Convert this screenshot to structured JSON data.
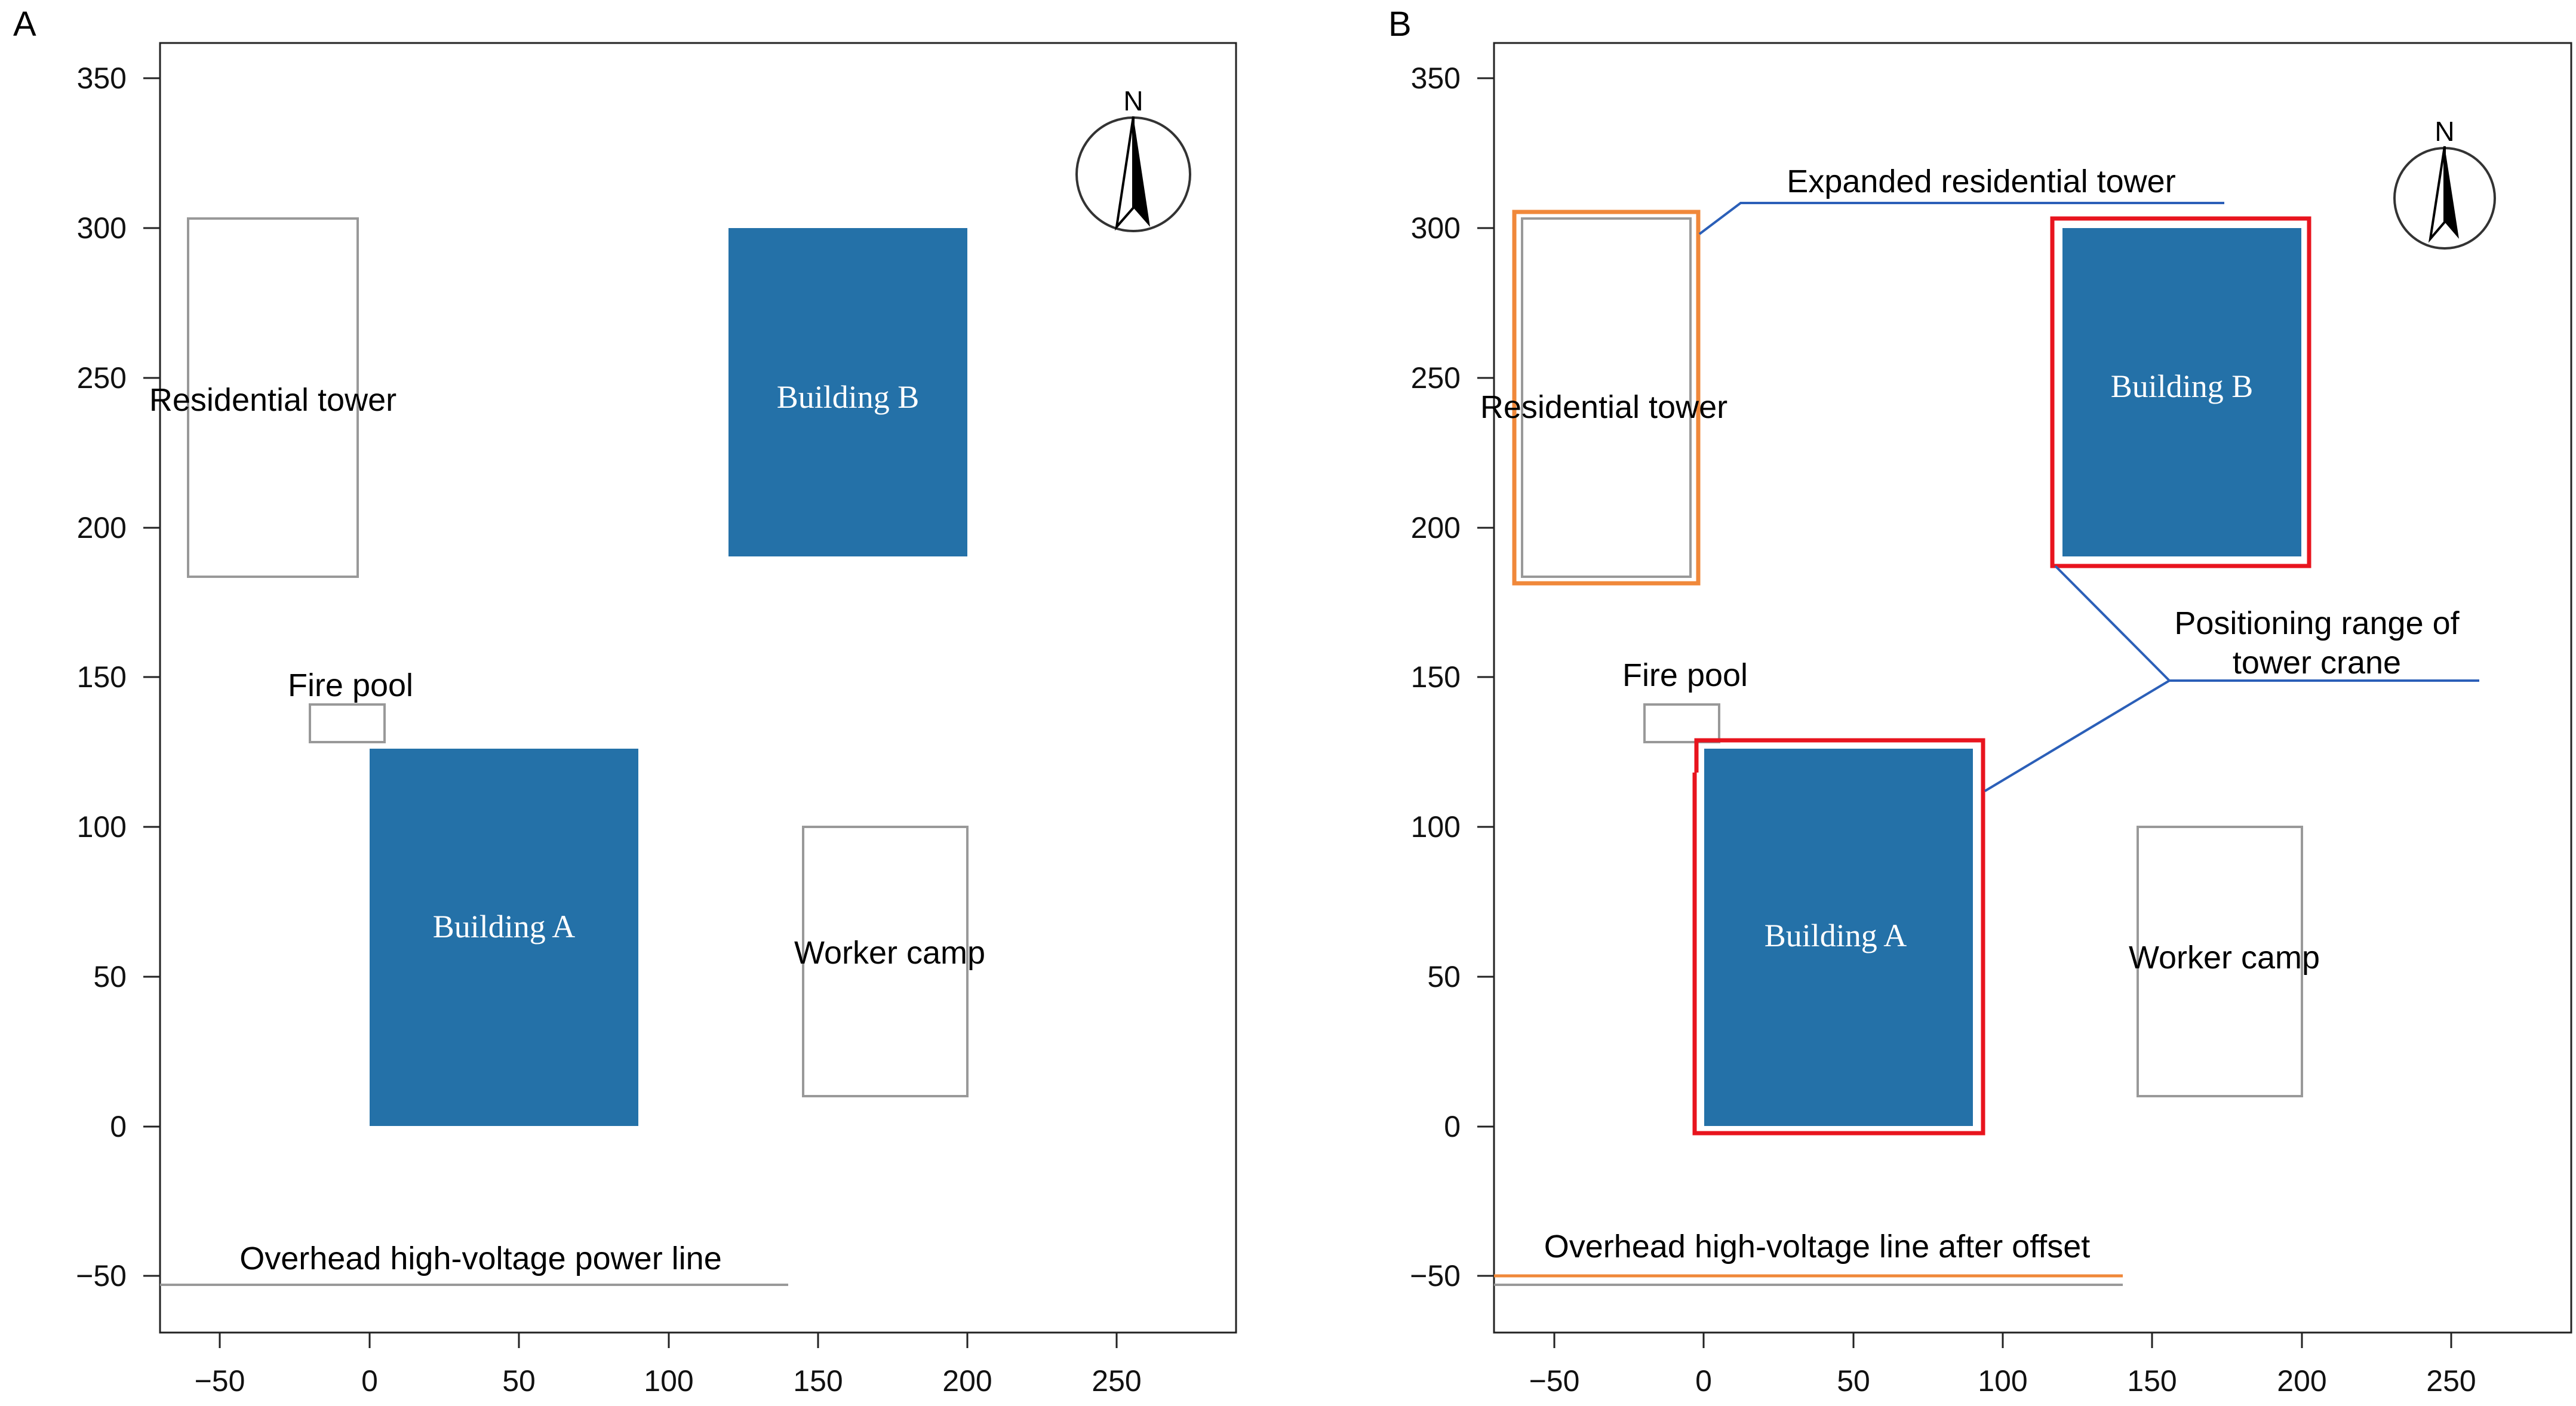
{
  "figure": {
    "panels": [
      {
        "letter": "A",
        "x_ticks": [
          "−50",
          "0",
          "50",
          "100",
          "150",
          "200",
          "250"
        ],
        "y_ticks": [
          "350",
          "300",
          "250",
          "200",
          "150",
          "100",
          "50",
          "0",
          "−50"
        ],
        "north": "N",
        "labels": {
          "residential": "Residential tower",
          "building_b": "Building B",
          "fire_pool": "Fire pool",
          "building_a": "Building A",
          "worker_camp": "Worker camp",
          "power_line": "Overhead high-voltage power line"
        }
      },
      {
        "letter": "B",
        "x_ticks": [
          "−50",
          "0",
          "50",
          "100",
          "150",
          "200",
          "250"
        ],
        "y_ticks": [
          "350",
          "300",
          "250",
          "200",
          "150",
          "100",
          "50",
          "0",
          "−50"
        ],
        "north": "N",
        "labels": {
          "expanded": "Expanded residential tower",
          "residential": "Residential tower",
          "building_b": "Building B",
          "positioning_line1": "Positioning range of",
          "positioning_line2": "tower crane",
          "fire_pool": "Fire pool",
          "building_a": "Building A",
          "worker_camp": "Worker camp",
          "power_line": "Overhead high-voltage line after offset"
        }
      }
    ],
    "colors": {
      "building_fill": "#2471a8",
      "outline_gray": "#999999",
      "highlight_red": "#e8141e",
      "highlight_orange": "#f0883a",
      "callout_blue": "#2b5fb8"
    },
    "site_layout": {
      "residential_tower": {
        "x": [
          -60,
          -3
        ],
        "y": [
          183,
          303
        ]
      },
      "building_b": {
        "x": [
          120,
          200
        ],
        "y": [
          190,
          300
        ]
      },
      "fire_pool": {
        "x": [
          -20,
          5
        ],
        "y": [
          128,
          141
        ]
      },
      "building_a": {
        "x": [
          0,
          90
        ],
        "y": [
          0,
          126
        ]
      },
      "worker_camp": {
        "x": [
          145,
          200
        ],
        "y": [
          10,
          100
        ]
      },
      "power_line_y": -53,
      "power_line_after_offset_y": -50
    }
  }
}
